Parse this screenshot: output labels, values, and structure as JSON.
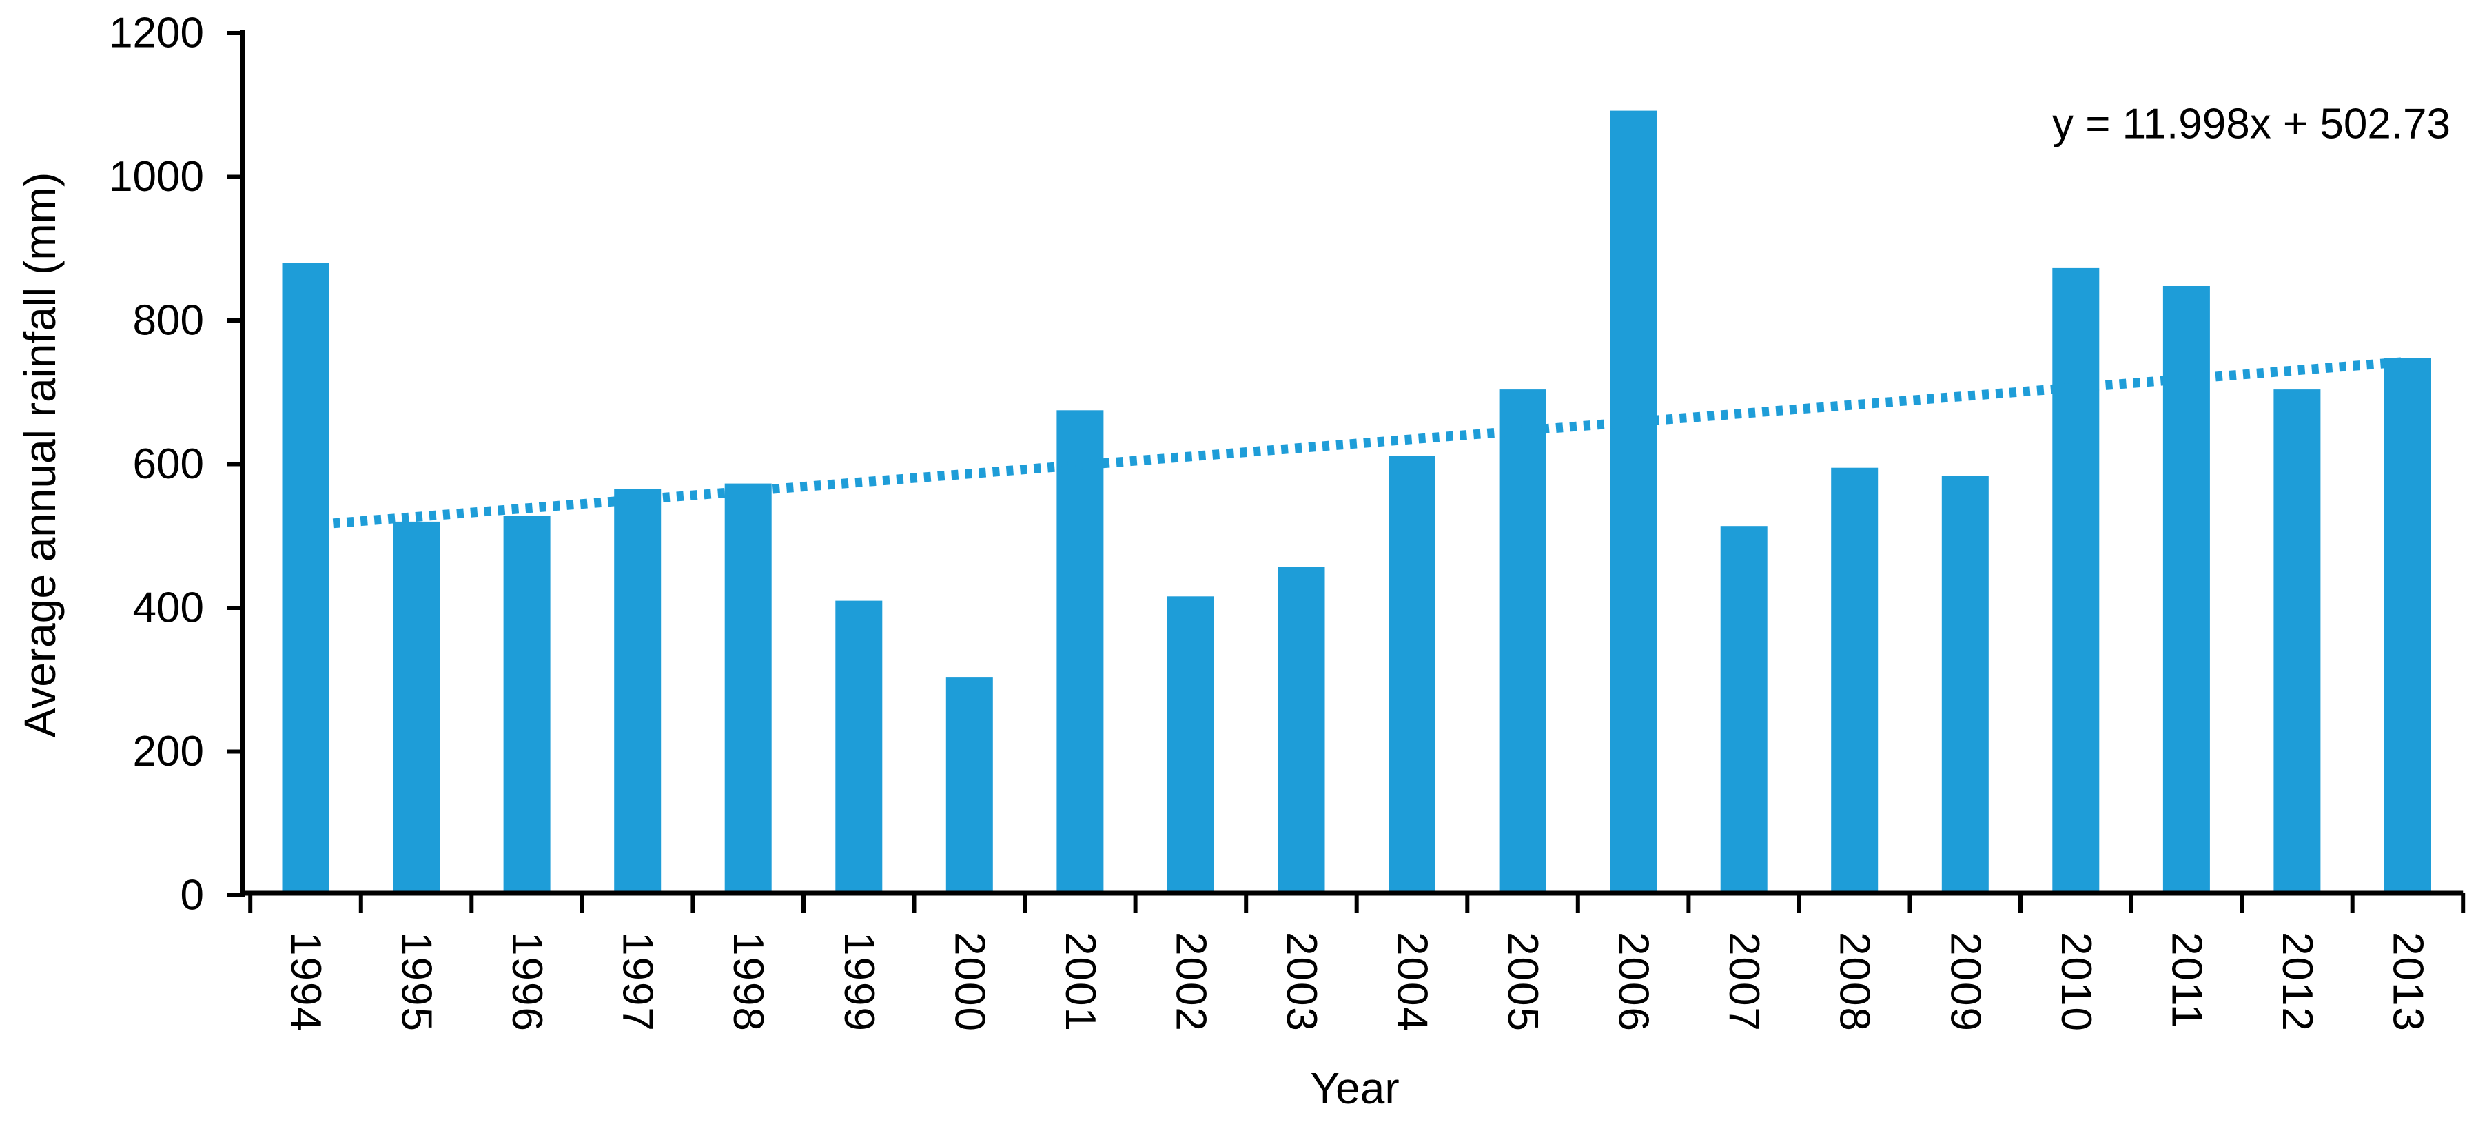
{
  "chart_data": {
    "type": "bar",
    "title": "",
    "xlabel": "Year",
    "ylabel": "Average annual rainfall (mm)",
    "categories": [
      "1994",
      "1995",
      "1996",
      "1997",
      "1998",
      "1999",
      "2000",
      "2001",
      "2002",
      "2003",
      "2004",
      "2005",
      "2006",
      "2007",
      "2008",
      "2009",
      "2010",
      "2011",
      "2012",
      "2013"
    ],
    "values": [
      880,
      520,
      528,
      565,
      573,
      410,
      303,
      675,
      416,
      457,
      612,
      704,
      1092,
      514,
      595,
      584,
      873,
      848,
      704,
      748
    ],
    "y_ticks": [
      0,
      200,
      400,
      600,
      800,
      1000,
      1200
    ],
    "ylim": [
      0,
      1200
    ],
    "grid": false,
    "legend": "none",
    "bar_color": "#1E9DD8",
    "axis_color": "#000000",
    "label_color": "#000000",
    "trendline": {
      "equation": "y = 11.998x + 502.73",
      "slope": 11.998,
      "intercept": 502.73,
      "style": "dotted",
      "color": "#1E9DD8",
      "equation_color": "#7F7F7F"
    }
  }
}
